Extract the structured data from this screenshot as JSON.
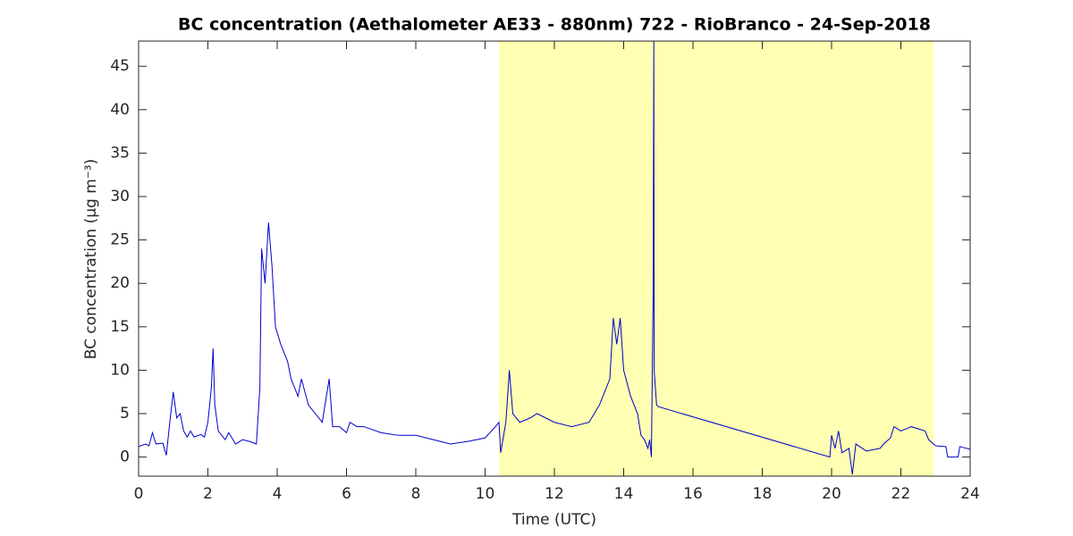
{
  "chart_data": {
    "type": "line",
    "title": "BC concentration (Aethalometer AE33 - 880nm) 722 - RioBranco - 24-Sep-2018",
    "xlabel": "Time (UTC)",
    "ylabel": "BC concentration (μg m⁻³)",
    "xlim": [
      0,
      24
    ],
    "ylim": [
      -2.2,
      47.9
    ],
    "xticks": [
      0,
      2,
      4,
      6,
      8,
      10,
      12,
      14,
      16,
      18,
      20,
      22,
      24
    ],
    "yticks": [
      0,
      5,
      10,
      15,
      20,
      25,
      30,
      35,
      40,
      45
    ],
    "shaded_region": [
      10.4,
      22.95
    ],
    "shade_color": "#ffffb3",
    "series": [
      {
        "color": "#0000cc",
        "x": [
          0,
          0.2,
          0.3,
          0.4,
          0.5,
          0.7,
          0.8,
          0.9,
          1.0,
          1.1,
          1.2,
          1.3,
          1.4,
          1.5,
          1.6,
          1.8,
          1.9,
          2.0,
          2.1,
          2.15,
          2.2,
          2.3,
          2.5,
          2.6,
          2.8,
          3.0,
          3.2,
          3.4,
          3.5,
          3.55,
          3.65,
          3.75,
          3.85,
          3.95,
          4.1,
          4.3,
          4.4,
          4.6,
          4.7,
          4.9,
          5.1,
          5.3,
          5.5,
          5.6,
          5.8,
          6.0,
          6.1,
          6.3,
          6.5,
          7.0,
          7.5,
          8.0,
          8.5,
          9.0,
          9.5,
          10.0,
          10.3,
          10.4,
          10.45,
          10.6,
          10.7,
          10.8,
          11.0,
          11.3,
          11.5,
          12.0,
          12.5,
          13.0,
          13.3,
          13.6,
          13.7,
          13.8,
          13.9,
          14.0,
          14.2,
          14.4,
          14.5,
          14.6,
          14.7,
          14.75,
          14.8,
          14.85,
          14.87,
          14.88,
          14.95,
          15.0,
          19.95,
          20.0,
          20.1,
          20.2,
          20.3,
          20.5,
          20.6,
          20.7,
          21.0,
          21.4,
          21.5,
          21.7,
          21.8,
          22.0,
          22.3,
          22.7,
          22.8,
          23.0,
          23.3,
          23.35,
          23.65,
          23.7,
          24.0
        ],
        "values": [
          1.2,
          1.5,
          1.3,
          2.8,
          1.5,
          1.6,
          0.2,
          4,
          7.5,
          4.5,
          5,
          3,
          2.3,
          3,
          2.3,
          2.6,
          2.3,
          4,
          8,
          12.5,
          6,
          3,
          2,
          2.8,
          1.5,
          2,
          1.8,
          1.5,
          8,
          24,
          20,
          27,
          22,
          15,
          13,
          11,
          9,
          7,
          9,
          6,
          5,
          4,
          9,
          3.5,
          3.5,
          2.8,
          4,
          3.5,
          3.5,
          2.8,
          2.5,
          2.5,
          2,
          1.5,
          1.8,
          2.2,
          3.5,
          4,
          0.5,
          4,
          10,
          5,
          4,
          4.5,
          5,
          4,
          3.5,
          4,
          6,
          9,
          16,
          13,
          16,
          10,
          7,
          5,
          2.5,
          2,
          1,
          2,
          0,
          19,
          48,
          10,
          6,
          5.8,
          0,
          2.5,
          1,
          3,
          0.5,
          1,
          -2,
          1.5,
          0.7,
          1,
          1.5,
          2.2,
          3.5,
          3,
          3.5,
          3,
          2,
          1.3,
          1.2,
          0,
          0,
          1.2,
          0.9
        ]
      }
    ]
  }
}
